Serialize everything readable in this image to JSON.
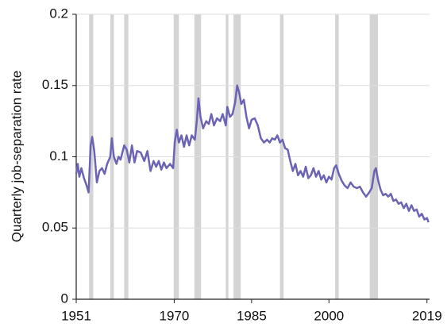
{
  "chart_data": {
    "type": "line",
    "y_label": "Quarterly job-separation rate",
    "x": [
      1951.0,
      1951.3,
      1951.6,
      1952.0,
      1952.5,
      1953.0,
      1953.4,
      1953.8,
      1954.1,
      1954.5,
      1955.0,
      1955.5,
      1956.0,
      1956.5,
      1957.0,
      1957.6,
      1957.9,
      1958.3,
      1958.8,
      1959.2,
      1959.6,
      1960.3,
      1960.8,
      1961.3,
      1961.8,
      1962.3,
      1962.8,
      1963.5,
      1964.2,
      1964.8,
      1965.4,
      1966.0,
      1966.5,
      1967.0,
      1967.5,
      1968.0,
      1968.5,
      1969.2,
      1969.8,
      1970.1,
      1970.5,
      1970.9,
      1971.4,
      1971.9,
      1972.4,
      1972.9,
      1973.4,
      1974.0,
      1974.4,
      1974.7,
      1975.1,
      1975.6,
      1976.2,
      1976.7,
      1977.2,
      1977.7,
      1978.3,
      1978.9,
      1979.4,
      1980.0,
      1980.3,
      1980.8,
      1981.3,
      1981.8,
      1982.2,
      1982.6,
      1983.0,
      1983.5,
      1984.0,
      1984.5,
      1985.0,
      1985.6,
      1986.2,
      1986.8,
      1987.4,
      1988.0,
      1988.5,
      1989.0,
      1989.5,
      1990.0,
      1990.5,
      1991.0,
      1991.5,
      1992.0,
      1992.5,
      1993.0,
      1993.5,
      1994.0,
      1994.5,
      1995.0,
      1995.5,
      1996.0,
      1996.5,
      1997.0,
      1997.5,
      1998.0,
      1998.5,
      1999.0,
      1999.5,
      2000.0,
      2000.5,
      2001.0,
      2001.4,
      2001.9,
      2002.5,
      2003.0,
      2003.6,
      2004.2,
      2004.8,
      2005.4,
      2006.0,
      2006.6,
      2007.2,
      2007.8,
      2008.3,
      2008.8,
      2009.1,
      2009.5,
      2010.0,
      2010.5,
      2011.0,
      2011.5,
      2012.0,
      2012.5,
      2013.0,
      2013.5,
      2014.0,
      2014.5,
      2015.0,
      2015.5,
      2016.0,
      2016.5,
      2017.0,
      2017.5,
      2018.0,
      2018.5,
      2019.0,
      2019.3
    ],
    "values": [
      0.088,
      0.095,
      0.086,
      0.092,
      0.085,
      0.08,
      0.075,
      0.108,
      0.114,
      0.104,
      0.082,
      0.09,
      0.092,
      0.088,
      0.095,
      0.1,
      0.113,
      0.1,
      0.095,
      0.1,
      0.098,
      0.108,
      0.105,
      0.096,
      0.108,
      0.096,
      0.104,
      0.103,
      0.097,
      0.104,
      0.09,
      0.097,
      0.093,
      0.097,
      0.091,
      0.096,
      0.092,
      0.095,
      0.092,
      0.11,
      0.119,
      0.11,
      0.115,
      0.107,
      0.115,
      0.108,
      0.115,
      0.112,
      0.126,
      0.141,
      0.128,
      0.12,
      0.125,
      0.123,
      0.13,
      0.122,
      0.127,
      0.125,
      0.13,
      0.122,
      0.135,
      0.128,
      0.13,
      0.138,
      0.15,
      0.145,
      0.137,
      0.14,
      0.128,
      0.12,
      0.126,
      0.127,
      0.122,
      0.113,
      0.11,
      0.112,
      0.11,
      0.113,
      0.112,
      0.115,
      0.11,
      0.112,
      0.106,
      0.105,
      0.097,
      0.09,
      0.095,
      0.087,
      0.09,
      0.086,
      0.093,
      0.085,
      0.087,
      0.092,
      0.086,
      0.09,
      0.084,
      0.087,
      0.082,
      0.086,
      0.084,
      0.092,
      0.094,
      0.088,
      0.083,
      0.08,
      0.078,
      0.082,
      0.079,
      0.078,
      0.079,
      0.075,
      0.072,
      0.075,
      0.078,
      0.09,
      0.092,
      0.084,
      0.077,
      0.073,
      0.074,
      0.072,
      0.074,
      0.069,
      0.07,
      0.067,
      0.068,
      0.064,
      0.067,
      0.062,
      0.066,
      0.062,
      0.063,
      0.058,
      0.06,
      0.056,
      0.057,
      0.054
    ],
    "color": "#6b63b3",
    "recessions": [
      [
        1953.5,
        1954.3
      ],
      [
        1957.6,
        1958.3
      ],
      [
        1960.3,
        1961.1
      ],
      [
        1969.9,
        1970.9
      ],
      [
        1973.9,
        1975.2
      ],
      [
        1980.0,
        1980.5
      ],
      [
        1981.5,
        1982.9
      ],
      [
        1990.5,
        1991.2
      ],
      [
        2001.2,
        2001.9
      ],
      [
        2007.9,
        2009.5
      ]
    ],
    "recession_color": "#d4d4d4",
    "xlim": [
      1951,
      2019.5
    ],
    "xticks": [
      1951,
      1970,
      1985,
      2000,
      2019
    ],
    "ylim": [
      0,
      0.2
    ],
    "yticks": [
      0,
      0.05,
      0.1,
      0.15,
      0.2
    ],
    "grid": true
  }
}
